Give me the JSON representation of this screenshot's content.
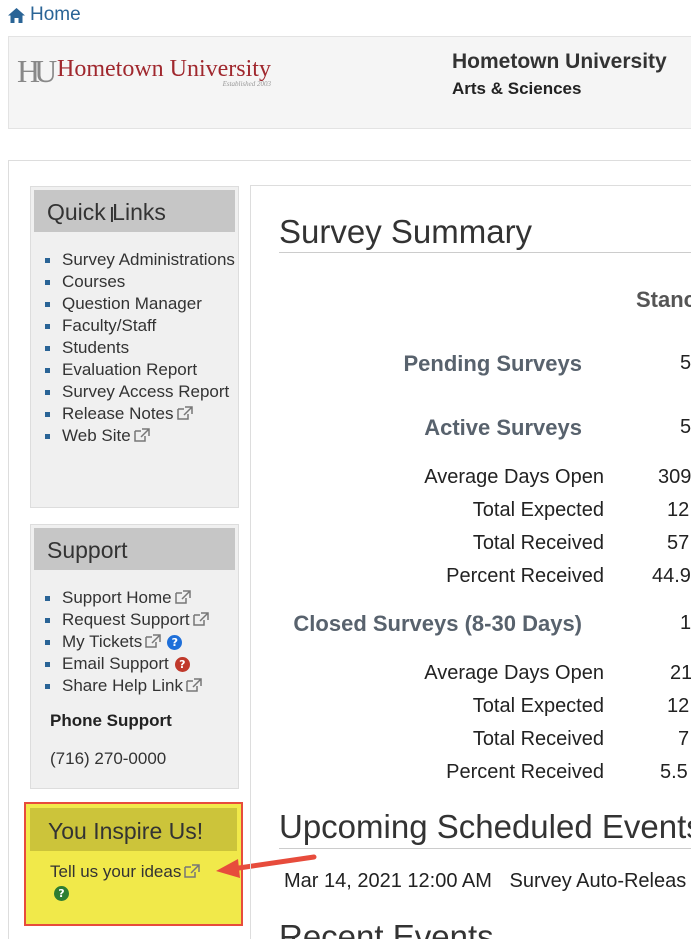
{
  "nav": {
    "home_label": "Home"
  },
  "header": {
    "logo_text": "Hometown University",
    "logo_mark": "HU",
    "logo_subtext": "Established 2003",
    "university_name": "Hometown University",
    "department": "Arts & Sciences"
  },
  "quick_links": {
    "title": "Quick Links",
    "items": [
      {
        "label": "Survey Administrations",
        "external": false
      },
      {
        "label": "Courses",
        "external": false
      },
      {
        "label": "Question Manager",
        "external": false
      },
      {
        "label": "Faculty/Staff",
        "external": false
      },
      {
        "label": "Students",
        "external": false
      },
      {
        "label": "Evaluation Report",
        "external": false
      },
      {
        "label": "Survey Access Report",
        "external": false
      },
      {
        "label": "Release Notes",
        "external": true
      },
      {
        "label": "Web Site",
        "external": true
      }
    ]
  },
  "support": {
    "title": "Support",
    "items": [
      {
        "label": "Support Home",
        "icon": "external-link-icon"
      },
      {
        "label": "Request Support",
        "icon": "external-link-icon"
      },
      {
        "label": "My Tickets",
        "icon": "external-link-icon"
      },
      {
        "label": "Email Support",
        "icon": "help-icon"
      },
      {
        "label": "Share Help Link",
        "icon": "external-link-icon"
      }
    ],
    "phone_heading": "Phone Support",
    "phone_number": "(716) 270-0000"
  },
  "inspire": {
    "title": "You Inspire Us!",
    "link_label": "Tell us your ideas"
  },
  "survey_summary": {
    "title": "Survey Summary",
    "column_header": "Stanc",
    "pending": {
      "label": "Pending Surveys",
      "value": "5"
    },
    "active": {
      "label": "Active Surveys",
      "value": "5",
      "stats": [
        {
          "label": "Average Days Open",
          "value": "309"
        },
        {
          "label": "Total Expected",
          "value": "12"
        },
        {
          "label": "Total Received",
          "value": "57"
        },
        {
          "label": "Percent Received",
          "value": "44.9"
        }
      ]
    },
    "closed": {
      "label": "Closed Surveys (8-30 Days)",
      "value": "1",
      "stats": [
        {
          "label": "Average Days Open",
          "value": "21"
        },
        {
          "label": "Total Expected",
          "value": "12"
        },
        {
          "label": "Total Received",
          "value": "7"
        },
        {
          "label": "Percent Received",
          "value": "5.5"
        }
      ]
    }
  },
  "upcoming": {
    "title": "Upcoming Scheduled Events",
    "events": [
      {
        "date": "Mar 14, 2021 12:00 AM",
        "name": "Survey Auto-Releas"
      }
    ]
  },
  "recent": {
    "title": "Recent Events"
  },
  "colors": {
    "link_blue": "#2a6496",
    "logo_red": "#a0282e",
    "highlight_yellow": "#f1e94a",
    "highlight_border": "#e74c3c"
  }
}
